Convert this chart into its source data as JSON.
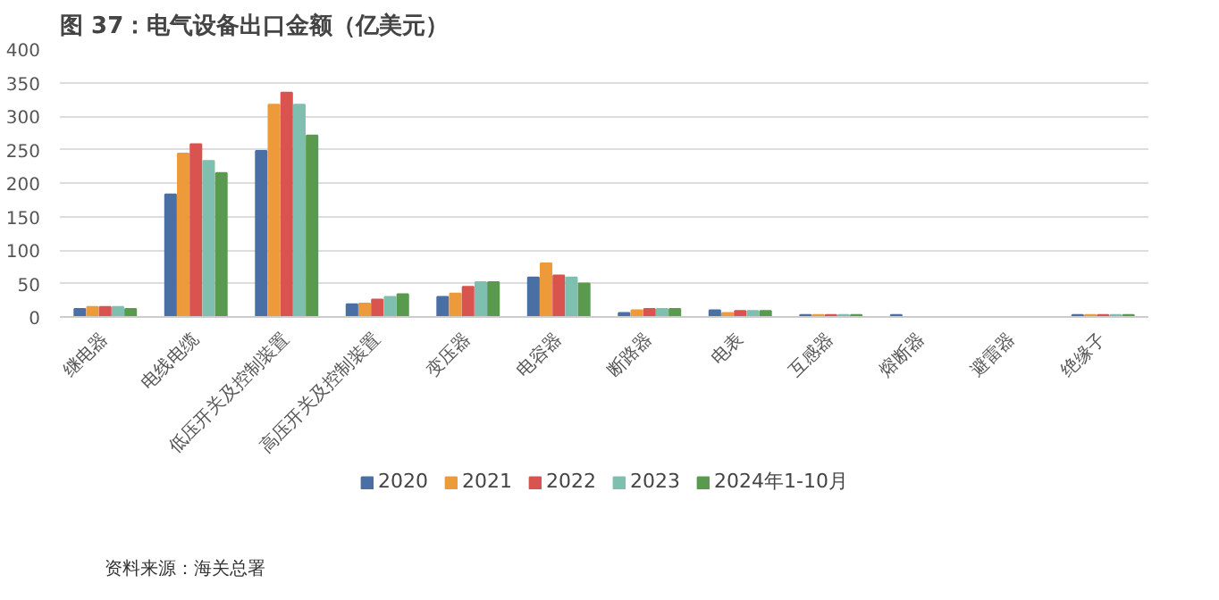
{
  "chart_data": {
    "type": "bar",
    "title": "图 37：电气设备出口金额（亿美元）",
    "categories": [
      "继电器",
      "电线电缆",
      "低压开关及控制装置",
      "高压开关及控制装置",
      "变压器",
      "电容器",
      "断路器",
      "电表",
      "互感器",
      "熔断器",
      "避雷器",
      "绝缘子"
    ],
    "series": [
      {
        "name": "2020",
        "color": "#4a6fa5",
        "values": [
          12,
          183,
          248,
          19,
          30,
          59,
          6,
          10,
          3,
          3,
          0,
          3
        ]
      },
      {
        "name": "2021",
        "color": "#ed9a3a",
        "values": [
          15,
          244,
          317,
          20,
          35,
          80,
          10,
          6,
          3,
          0,
          0,
          3
        ]
      },
      {
        "name": "2022",
        "color": "#d9534f",
        "values": [
          15,
          258,
          335,
          26,
          45,
          62,
          12,
          9,
          3,
          0,
          0,
          3
        ]
      },
      {
        "name": "2023",
        "color": "#7fbfb0",
        "values": [
          15,
          233,
          317,
          30,
          52,
          59,
          12,
          9,
          3,
          0,
          0,
          3
        ]
      },
      {
        "name": "2024年1-10月",
        "color": "#5a9a4f",
        "values": [
          12,
          215,
          271,
          34,
          52,
          50,
          12,
          9,
          3,
          0,
          0,
          3
        ]
      }
    ],
    "ylim": [
      0,
      400
    ],
    "yticks": [
      0,
      50,
      100,
      150,
      200,
      250,
      300,
      350,
      400
    ],
    "grid": "y",
    "legend": "bottom",
    "annotations": [
      "资料来源：海关总署"
    ]
  }
}
